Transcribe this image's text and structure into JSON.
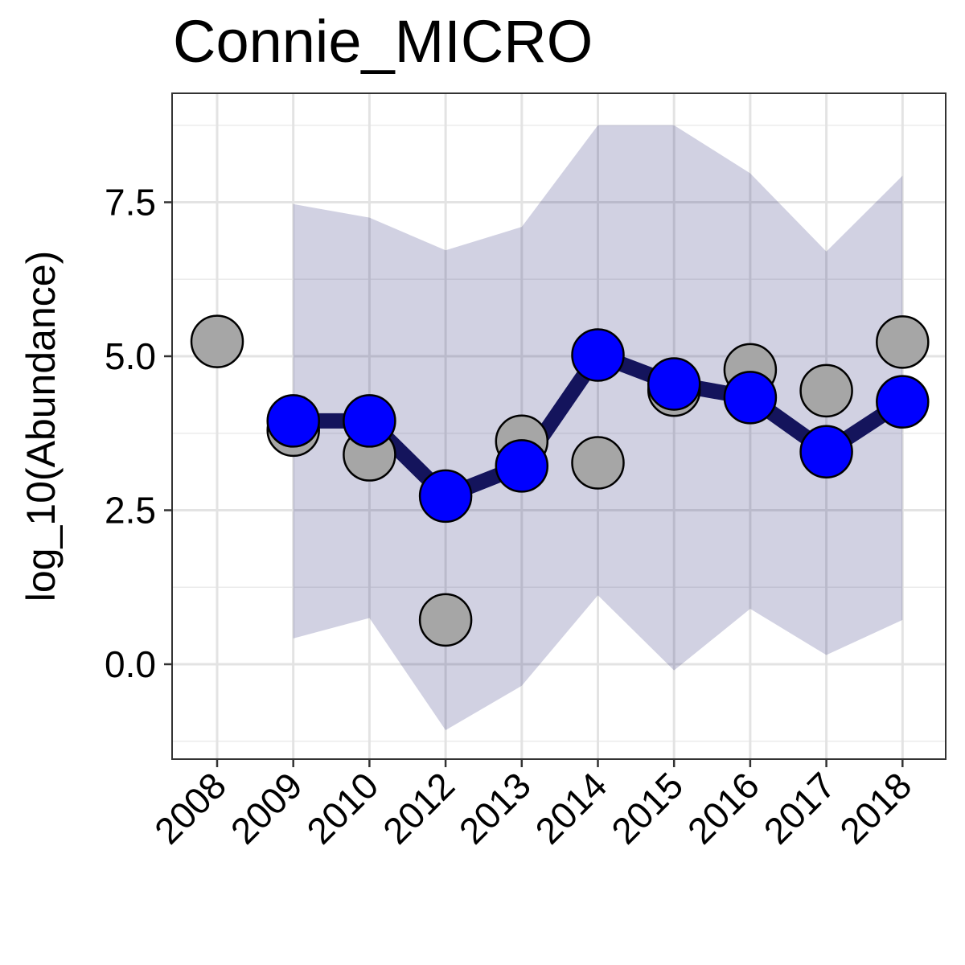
{
  "chart_data": {
    "type": "line",
    "title": "Connie_MICRO",
    "xlabel": "",
    "ylabel": "log_10(Abundance)",
    "categories": [
      "2008",
      "2009",
      "2010",
      "2012",
      "2013",
      "2014",
      "2015",
      "2016",
      "2017",
      "2018"
    ],
    "y_ticks": [
      "0.0",
      "2.5",
      "5.0",
      "7.5"
    ],
    "ylim": [
      -1.5,
      9.2
    ],
    "grid": true,
    "legend": "none",
    "series": [
      {
        "kind": "ribbon",
        "color": "#1a1a6e",
        "opacity": 0.2,
        "lower": [
          null,
          0.42,
          0.75,
          -1.07,
          -0.35,
          1.12,
          -0.1,
          0.9,
          0.15,
          0.72
        ],
        "upper": [
          null,
          7.47,
          7.25,
          6.72,
          7.1,
          8.75,
          8.75,
          7.97,
          6.7,
          7.93
        ]
      },
      {
        "kind": "points",
        "fill": "#a6a6a6",
        "values": [
          5.24,
          3.8,
          3.4,
          0.72,
          3.62,
          3.27,
          4.45,
          4.78,
          4.44,
          5.23
        ]
      },
      {
        "kind": "line",
        "line_color": "#14145c",
        "fill": "#0000ff",
        "values": [
          null,
          3.95,
          3.95,
          2.73,
          3.22,
          5.02,
          4.55,
          4.33,
          3.45,
          4.26
        ]
      }
    ]
  }
}
